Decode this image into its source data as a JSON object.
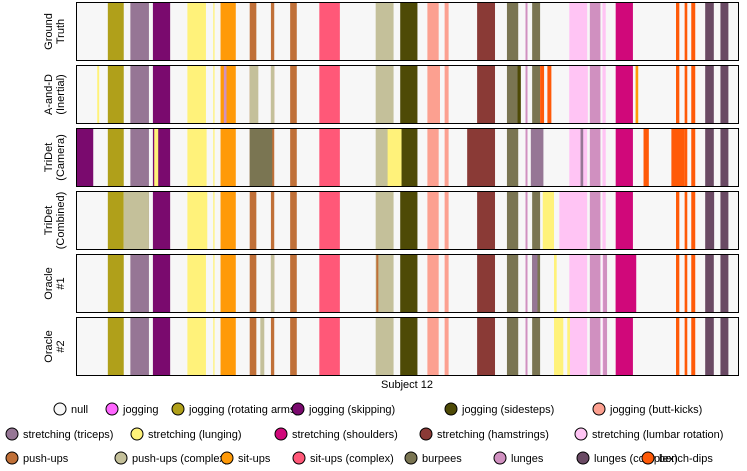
{
  "chart_data": {
    "type": "heatmap",
    "subtype": "segmentation-timeline",
    "xlabel": "Subject 12",
    "x_range": [
      0,
      1000
    ],
    "rows": [
      {
        "label_lines": [
          "Ground",
          "Truth"
        ]
      },
      {
        "label_lines": [
          "A-and-D",
          "(Inertial)"
        ]
      },
      {
        "label_lines": [
          "TriDet",
          "(Camera)"
        ]
      },
      {
        "label_lines": [
          "TriDet",
          "(Combined)"
        ]
      },
      {
        "label_lines": [
          "Oracle",
          "#1"
        ]
      },
      {
        "label_lines": [
          "Oracle",
          "#2"
        ]
      }
    ],
    "classes": [
      {
        "name": "null",
        "color": "#f7f7f7"
      },
      {
        "name": "jogging",
        "color": "#ff66ff"
      },
      {
        "name": "jogging (rotating arms)",
        "color": "#b0a01a"
      },
      {
        "name": "jogging (skipping)",
        "color": "#7a0a6e"
      },
      {
        "name": "jogging (sidesteps)",
        "color": "#4e4a06"
      },
      {
        "name": "jogging (butt-kicks)",
        "color": "#fca090"
      },
      {
        "name": "stretching (triceps)",
        "color": "#967695"
      },
      {
        "name": "stretching (lunging)",
        "color": "#fff27a"
      },
      {
        "name": "stretching (shoulders)",
        "color": "#d0087a"
      },
      {
        "name": "stretching (hamstrings)",
        "color": "#8a3a36"
      },
      {
        "name": "stretching (lumbar rotation)",
        "color": "#ffc4f4"
      },
      {
        "name": "push-ups",
        "color": "#c07038"
      },
      {
        "name": "push-ups (complex)",
        "color": "#c4c09a"
      },
      {
        "name": "sit-ups",
        "color": "#ff9a08"
      },
      {
        "name": "sit-ups (complex)",
        "color": "#ff5878"
      },
      {
        "name": "burpees",
        "color": "#7a7552"
      },
      {
        "name": "lunges",
        "color": "#d090c0"
      },
      {
        "name": "lunges (complex)",
        "color": "#6a4a64"
      },
      {
        "name": "bench-dips",
        "color": "#ff5a08"
      }
    ],
    "base_segments": [
      [
        0,
        1,
        32
      ],
      [
        2,
        48,
        72
      ],
      [
        6,
        82,
        110
      ],
      [
        3,
        116,
        142
      ],
      [
        7,
        168,
        196
      ],
      [
        7,
        207,
        209
      ],
      [
        13,
        218,
        241
      ],
      [
        11,
        262,
        272
      ],
      [
        11,
        294,
        299
      ],
      [
        11,
        323,
        333
      ],
      [
        14,
        367,
        398
      ],
      [
        12,
        452,
        479
      ],
      [
        4,
        489,
        515
      ],
      [
        5,
        530,
        547
      ],
      [
        5,
        556,
        562
      ],
      [
        9,
        605,
        632
      ],
      [
        15,
        650,
        667
      ],
      [
        16,
        678,
        681
      ],
      [
        15,
        688,
        700
      ],
      [
        10,
        744,
        771
      ],
      [
        16,
        775,
        791
      ],
      [
        10,
        794,
        799
      ],
      [
        8,
        814,
        840
      ],
      [
        18,
        905,
        910
      ],
      [
        18,
        918,
        922
      ],
      [
        18,
        928,
        934
      ],
      [
        17,
        949,
        962
      ],
      [
        17,
        972,
        984
      ]
    ],
    "row_overrides": [
      [],
      [
        [
          7,
          32,
          35
        ],
        [
          16,
          223,
          227
        ],
        [
          12,
          262,
          275
        ],
        [
          12,
          294,
          299
        ],
        [
          5,
          535,
          549
        ],
        [
          4,
          666,
          671
        ],
        [
          18,
          700,
          706
        ],
        [
          18,
          711,
          717
        ],
        [
          10,
          744,
          772
        ],
        [
          13,
          844,
          848
        ]
      ],
      [
        [
          3,
          1,
          26
        ],
        [
          7,
          118,
          124
        ],
        [
          7,
          185,
          197
        ],
        [
          15,
          262,
          296
        ],
        [
          7,
          470,
          491
        ],
        [
          9,
          590,
          632
        ],
        [
          6,
          686,
          705
        ],
        [
          6,
          761,
          765
        ],
        [
          18,
          856,
          864
        ],
        [
          18,
          898,
          918
        ]
      ],
      [
        [
          12,
          72,
          110
        ],
        [
          7,
          186,
          198
        ],
        [
          7,
          704,
          721
        ],
        [
          10,
          729,
          745
        ],
        [
          17,
          961,
          962
        ]
      ],
      [
        [
          12,
          294,
          299
        ],
        [
          11,
          453,
          456
        ],
        [
          6,
          688,
          696
        ],
        [
          16,
          795,
          801
        ],
        [
          7,
          721,
          725
        ],
        [
          8,
          814,
          845
        ]
      ],
      [
        [
          12,
          278,
          284
        ],
        [
          7,
          721,
          735
        ],
        [
          7,
          741,
          745
        ],
        [
          16,
          795,
          801
        ]
      ]
    ]
  },
  "legend": {
    "items": [
      "null",
      "jogging",
      "jogging (rotating arms)",
      "jogging (skipping)",
      "jogging (sidesteps)",
      "jogging (butt-kicks)",
      "stretching (triceps)",
      "stretching (lunging)",
      "stretching (shoulders)",
      "stretching (hamstrings)",
      "stretching (lumbar rotation)",
      "push-ups",
      "push-ups (complex)",
      "sit-ups",
      "sit-ups (complex)",
      "burpees",
      "lunges",
      "lunges (complex)",
      "bench-dips"
    ]
  }
}
